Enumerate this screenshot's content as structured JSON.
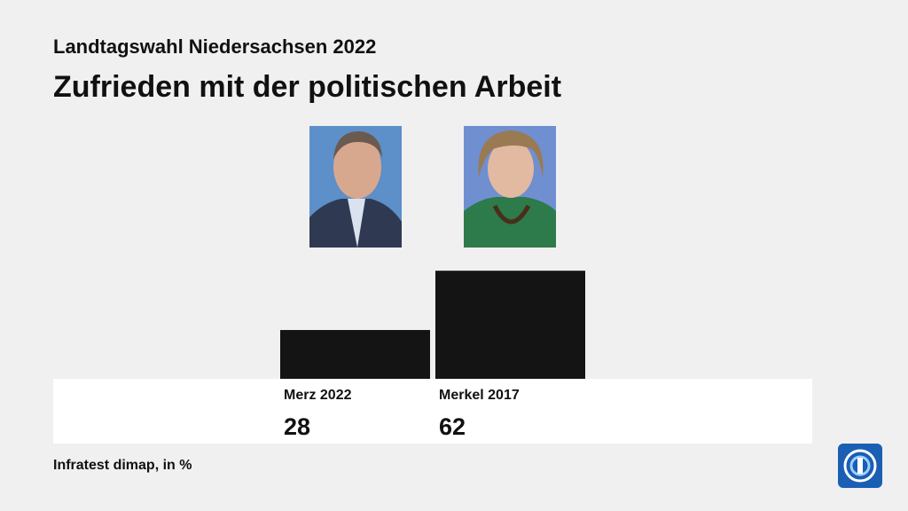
{
  "chart_data": {
    "type": "bar",
    "subtitle": "Landtagswahl Niedersachsen 2022",
    "title": "Zufrieden mit der politischen Arbeit",
    "categories": [
      "Merz 2022",
      "Merkel 2017"
    ],
    "values": [
      28,
      62
    ],
    "color": "#141414",
    "source": "Infratest dimap, in %"
  }
}
